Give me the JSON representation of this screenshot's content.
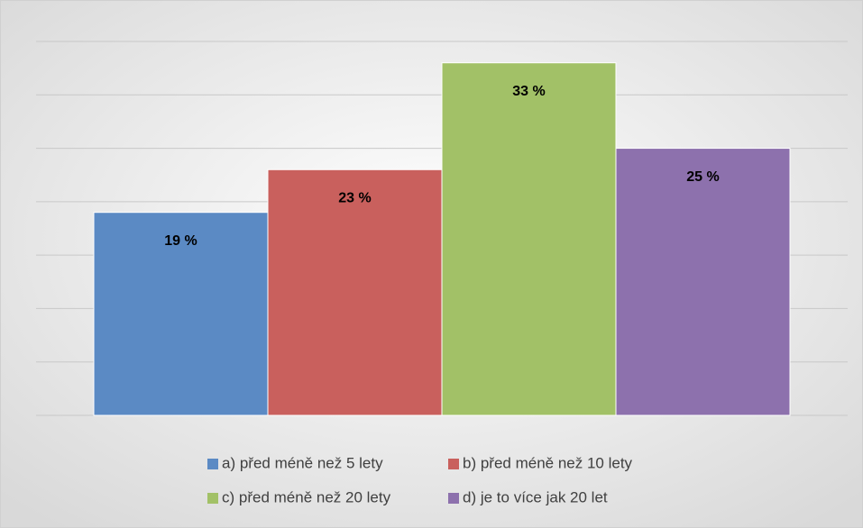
{
  "chart_data": {
    "type": "bar",
    "categories": [
      null
    ],
    "series": [
      {
        "name": "a) před méně než 5 lety",
        "color": "#5b8ac4",
        "values": [
          19
        ],
        "value_labels": [
          "19 %"
        ]
      },
      {
        "name": "b) před méně než 10 lety",
        "color": "#c9605d",
        "values": [
          23
        ],
        "value_labels": [
          "23 %"
        ]
      },
      {
        "name": "c) před méně než 20 lety",
        "color": "#a2c167",
        "values": [
          33
        ],
        "value_labels": [
          "33 %"
        ]
      },
      {
        "name": "d) je to více jak 20 let",
        "color": "#8d71ad",
        "values": [
          25
        ],
        "value_labels": [
          "25 %"
        ]
      }
    ],
    "ylim": [
      0,
      35
    ],
    "yticks": [
      0,
      5,
      10,
      15,
      20,
      25,
      30,
      35
    ],
    "grid": true,
    "legend": "bottom"
  }
}
